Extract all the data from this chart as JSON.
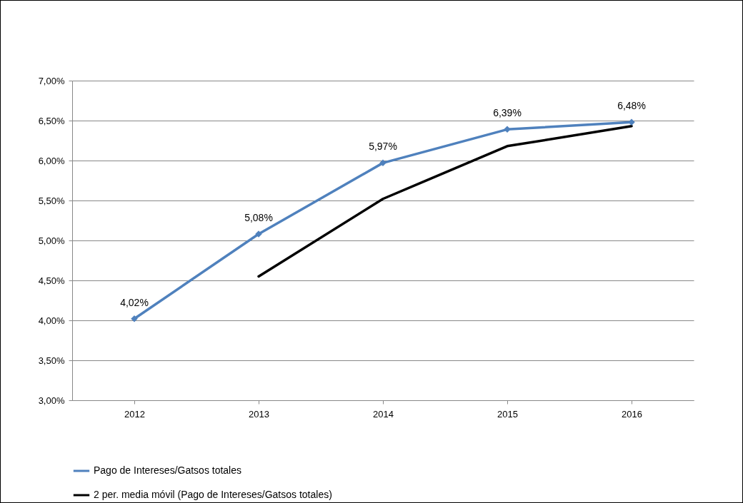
{
  "chart_data": {
    "type": "line",
    "categories": [
      "2012",
      "2013",
      "2014",
      "2015",
      "2016"
    ],
    "series": [
      {
        "name": "Pago de Intereses/Gatsos totales",
        "color": "#4f81bd",
        "marker": "diamond",
        "values": [
          4.02,
          5.08,
          5.97,
          6.39,
          6.48
        ],
        "value_labels": [
          "4,02%",
          "5,08%",
          "5,97%",
          "6,39%",
          "6,48%"
        ]
      },
      {
        "name": "2 per. media móvil (Pago de Intereses/Gatsos totales)",
        "color": "#000000",
        "marker": "none",
        "values": [
          null,
          4.55,
          5.52,
          6.18,
          6.43
        ]
      }
    ],
    "ylim": [
      3,
      7
    ],
    "yticks": [
      {
        "value": 3,
        "label": "3,00%"
      },
      {
        "value": 3.5,
        "label": "3,50%"
      },
      {
        "value": 4,
        "label": "4,00%"
      },
      {
        "value": 4.5,
        "label": "4,50%"
      },
      {
        "value": 5,
        "label": "5,00%"
      },
      {
        "value": 5.5,
        "label": "5,50%"
      },
      {
        "value": 6,
        "label": "6,00%"
      },
      {
        "value": 6.5,
        "label": "6,50%"
      },
      {
        "value": 7,
        "label": "7,00%"
      }
    ],
    "grid": "y",
    "legend": "bottom"
  }
}
